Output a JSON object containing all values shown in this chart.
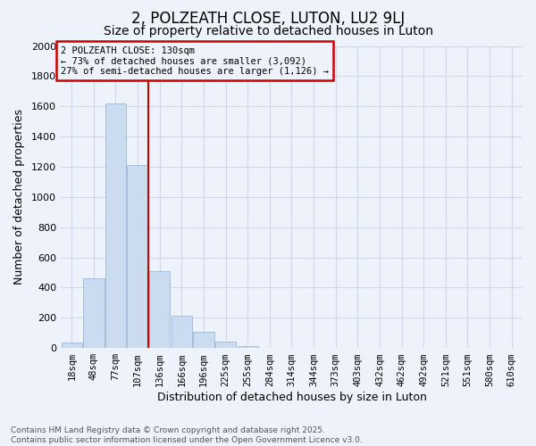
{
  "title": "2, POLZEATH CLOSE, LUTON, LU2 9LJ",
  "subtitle": "Size of property relative to detached houses in Luton",
  "xlabel": "Distribution of detached houses by size in Luton",
  "ylabel": "Number of detached properties",
  "bar_color": "#ccdcf0",
  "bar_edge_color": "#9ab8d8",
  "vline_color": "#cc0000",
  "annotation_title": "2 POLZEATH CLOSE: 130sqm",
  "annotation_line1": "← 73% of detached houses are smaller (3,092)",
  "annotation_line2": "27% of semi-detached houses are larger (1,126) →",
  "categories": [
    "18sqm",
    "48sqm",
    "77sqm",
    "107sqm",
    "136sqm",
    "166sqm",
    "196sqm",
    "225sqm",
    "255sqm",
    "284sqm",
    "314sqm",
    "344sqm",
    "373sqm",
    "403sqm",
    "432sqm",
    "462sqm",
    "492sqm",
    "521sqm",
    "551sqm",
    "580sqm",
    "610sqm"
  ],
  "values": [
    35,
    460,
    1620,
    1210,
    510,
    215,
    110,
    45,
    15,
    0,
    0,
    0,
    0,
    0,
    0,
    0,
    0,
    0,
    0,
    0,
    0
  ],
  "ylim": [
    0,
    2000
  ],
  "yticks": [
    0,
    200,
    400,
    600,
    800,
    1000,
    1200,
    1400,
    1600,
    1800,
    2000
  ],
  "background_color": "#eef2fb",
  "grid_color": "#d0d8ee",
  "footer_line1": "Contains HM Land Registry data © Crown copyright and database right 2025.",
  "footer_line2": "Contains public sector information licensed under the Open Government Licence v3.0.",
  "annotation_box_edge": "#cc0000",
  "title_fontsize": 12,
  "subtitle_fontsize": 10,
  "axis_label_fontsize": 9,
  "tick_fontsize": 7.5,
  "footer_fontsize": 6.5,
  "vline_bar_index": 3
}
